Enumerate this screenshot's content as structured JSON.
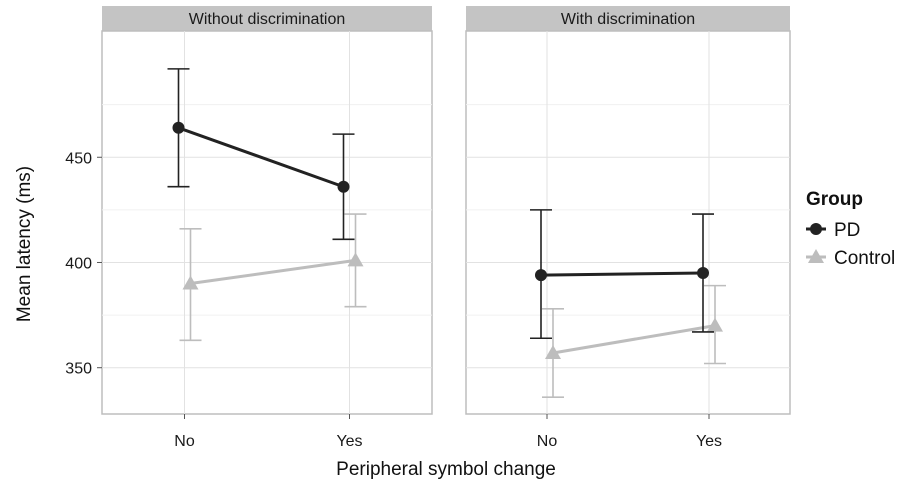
{
  "chart_data": {
    "type": "line",
    "ylabel": "Mean latency (ms)",
    "xlabel": "Peripheral symbol change",
    "categories": [
      "No",
      "Yes"
    ],
    "ylim": [
      328,
      510
    ],
    "yticks": [
      350,
      400,
      450
    ],
    "grid": true,
    "legend": {
      "title": "Group",
      "position": "right",
      "entries": [
        {
          "name": "PD",
          "marker": "circle",
          "color": "#222222"
        },
        {
          "name": "Control",
          "marker": "triangle",
          "color": "#bdbdbd"
        }
      ]
    },
    "panels": [
      {
        "title": "Without discrimination",
        "series": [
          {
            "name": "PD",
            "values": [
              464,
              436
            ],
            "lower": [
              436,
              411
            ],
            "upper": [
              492,
              461
            ]
          },
          {
            "name": "Control",
            "values": [
              390,
              401
            ],
            "lower": [
              363,
              379
            ],
            "upper": [
              416,
              423
            ]
          }
        ]
      },
      {
        "title": "With discrimination",
        "series": [
          {
            "name": "PD",
            "values": [
              394,
              395
            ],
            "lower": [
              364,
              367
            ],
            "upper": [
              425,
              423
            ]
          },
          {
            "name": "Control",
            "values": [
              357,
              370
            ],
            "lower": [
              336,
              352
            ],
            "upper": [
              378,
              389
            ]
          }
        ]
      }
    ]
  }
}
